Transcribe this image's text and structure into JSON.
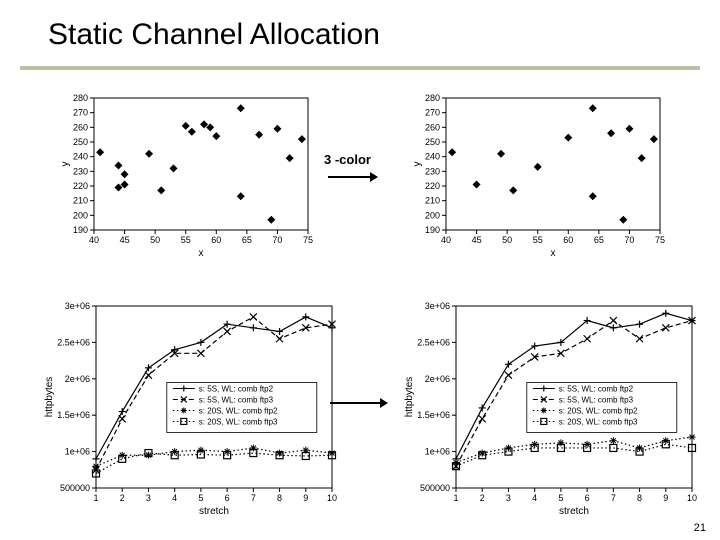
{
  "title": "Static Channel Allocation",
  "annotation": {
    "label": "3 -color"
  },
  "page_number": "21",
  "colors": {
    "title_underline": "#bfbf9f",
    "axis": "#000000",
    "point": "#000000",
    "bg": "#ffffff"
  },
  "scatter_top_left": {
    "type": "scatter",
    "xlabel": "x",
    "ylabel": "y",
    "xlim": [
      40,
      75
    ],
    "ylim": [
      190,
      280
    ],
    "xticks": [
      40,
      45,
      50,
      55,
      60,
      65,
      70,
      75
    ],
    "yticks": [
      190,
      200,
      210,
      220,
      230,
      240,
      250,
      260,
      270,
      280
    ],
    "marker": "diamond",
    "marker_size": 4,
    "points": [
      [
        41,
        243
      ],
      [
        44,
        219
      ],
      [
        44,
        234
      ],
      [
        45,
        221
      ],
      [
        45,
        228
      ],
      [
        49,
        242
      ],
      [
        51,
        217
      ],
      [
        53,
        232
      ],
      [
        55,
        261
      ],
      [
        56,
        257
      ],
      [
        58,
        262
      ],
      [
        59,
        260
      ],
      [
        60,
        254
      ],
      [
        64,
        273
      ],
      [
        64,
        213
      ],
      [
        67,
        255
      ],
      [
        69,
        197
      ],
      [
        70,
        259
      ],
      [
        72,
        239
      ],
      [
        74,
        252
      ]
    ]
  },
  "scatter_top_right": {
    "type": "scatter",
    "xlabel": "x",
    "ylabel": "y",
    "xlim": [
      40,
      75
    ],
    "ylim": [
      190,
      280
    ],
    "xticks": [
      40,
      45,
      50,
      55,
      60,
      65,
      70,
      75
    ],
    "yticks": [
      190,
      200,
      210,
      220,
      230,
      240,
      250,
      260,
      270,
      280
    ],
    "marker": "diamond",
    "marker_size": 4,
    "points": [
      [
        41,
        243
      ],
      [
        45,
        221
      ],
      [
        49,
        242
      ],
      [
        51,
        217
      ],
      [
        55,
        233
      ],
      [
        60,
        253
      ],
      [
        64,
        273
      ],
      [
        64,
        213
      ],
      [
        67,
        256
      ],
      [
        69,
        197
      ],
      [
        70,
        259
      ],
      [
        72,
        239
      ],
      [
        74,
        252
      ]
    ]
  },
  "line_bottom_left": {
    "type": "line-scatter",
    "xlabel": "stretch",
    "ylabel": "httpbytes",
    "xlim": [
      1,
      10
    ],
    "ylim": [
      500000,
      3000000
    ],
    "xticks": [
      1,
      2,
      3,
      4,
      5,
      6,
      7,
      8,
      9,
      10
    ],
    "yticks": [
      500000,
      1000000,
      1500000,
      2000000,
      2500000,
      3000000
    ],
    "ytick_labels": [
      "500000",
      "1e+06",
      "1.5e+06",
      "2e+06",
      "2.5e+06",
      "3e+06"
    ],
    "legend_pos": "inside-lower-right",
    "series": [
      {
        "name": "s: 5S, WL: comb ftp2",
        "marker": "plus",
        "dash": "solid",
        "data": [
          [
            1,
            900000
          ],
          [
            2,
            1550000
          ],
          [
            3,
            2150000
          ],
          [
            4,
            2400000
          ],
          [
            5,
            2500000
          ],
          [
            6,
            2750000
          ],
          [
            7,
            2700000
          ],
          [
            8,
            2650000
          ],
          [
            9,
            2850000
          ],
          [
            10,
            2700000
          ]
        ]
      },
      {
        "name": "s: 5S, WL: comb ftp3",
        "marker": "x",
        "dash": "dash",
        "data": [
          [
            1,
            750000
          ],
          [
            2,
            1450000
          ],
          [
            3,
            2050000
          ],
          [
            4,
            2350000
          ],
          [
            5,
            2350000
          ],
          [
            6,
            2650000
          ],
          [
            7,
            2850000
          ],
          [
            8,
            2550000
          ],
          [
            9,
            2700000
          ],
          [
            10,
            2750000
          ]
        ]
      },
      {
        "name": "s: 20S, WL: comb ftp2",
        "marker": "star",
        "dash": "dot",
        "data": [
          [
            1,
            800000
          ],
          [
            2,
            950000
          ],
          [
            3,
            950000
          ],
          [
            4,
            1000000
          ],
          [
            5,
            1020000
          ],
          [
            6,
            1000000
          ],
          [
            7,
            1050000
          ],
          [
            8,
            980000
          ],
          [
            9,
            1020000
          ],
          [
            10,
            980000
          ]
        ]
      },
      {
        "name": "s: 20S, WL: comb ftp3",
        "marker": "square",
        "dash": "dot",
        "data": [
          [
            1,
            700000
          ],
          [
            2,
            900000
          ],
          [
            3,
            980000
          ],
          [
            4,
            950000
          ],
          [
            5,
            960000
          ],
          [
            6,
            950000
          ],
          [
            7,
            980000
          ],
          [
            8,
            950000
          ],
          [
            9,
            940000
          ],
          [
            10,
            950000
          ]
        ]
      }
    ]
  },
  "line_bottom_right": {
    "type": "line-scatter",
    "xlabel": "stretch",
    "ylabel": "httpbytes",
    "xlim": [
      1,
      10
    ],
    "ylim": [
      500000,
      3000000
    ],
    "xticks": [
      1,
      2,
      3,
      4,
      5,
      6,
      7,
      8,
      9,
      10
    ],
    "yticks": [
      500000,
      1000000,
      1500000,
      2000000,
      2500000,
      3000000
    ],
    "ytick_labels": [
      "500000",
      "1e+06",
      "1.5e+06",
      "2e+06",
      "2.5e+06",
      "3e+06"
    ],
    "legend_pos": "inside-lower-right",
    "series": [
      {
        "name": "s: 5S, WL: comb ftp2",
        "marker": "plus",
        "dash": "solid",
        "data": [
          [
            1,
            900000
          ],
          [
            2,
            1600000
          ],
          [
            3,
            2200000
          ],
          [
            4,
            2450000
          ],
          [
            5,
            2500000
          ],
          [
            6,
            2800000
          ],
          [
            7,
            2700000
          ],
          [
            8,
            2750000
          ],
          [
            9,
            2900000
          ],
          [
            10,
            2800000
          ]
        ]
      },
      {
        "name": "s: 5S, WL: comb ftp3",
        "marker": "x",
        "dash": "dash",
        "data": [
          [
            1,
            800000
          ],
          [
            2,
            1450000
          ],
          [
            3,
            2050000
          ],
          [
            4,
            2300000
          ],
          [
            5,
            2350000
          ],
          [
            6,
            2550000
          ],
          [
            7,
            2800000
          ],
          [
            8,
            2550000
          ],
          [
            9,
            2700000
          ],
          [
            10,
            2800000
          ]
        ]
      },
      {
        "name": "s: 20S, WL: comb ftp2",
        "marker": "star",
        "dash": "dot",
        "data": [
          [
            1,
            850000
          ],
          [
            2,
            980000
          ],
          [
            3,
            1050000
          ],
          [
            4,
            1100000
          ],
          [
            5,
            1120000
          ],
          [
            6,
            1100000
          ],
          [
            7,
            1150000
          ],
          [
            8,
            1050000
          ],
          [
            9,
            1150000
          ],
          [
            10,
            1200000
          ]
        ]
      },
      {
        "name": "s: 20S, WL: comb ftp3",
        "marker": "square",
        "dash": "dot",
        "data": [
          [
            1,
            800000
          ],
          [
            2,
            950000
          ],
          [
            3,
            1000000
          ],
          [
            4,
            1050000
          ],
          [
            5,
            1050000
          ],
          [
            6,
            1050000
          ],
          [
            7,
            1050000
          ],
          [
            8,
            1000000
          ],
          [
            9,
            1100000
          ],
          [
            10,
            1050000
          ]
        ]
      }
    ]
  }
}
